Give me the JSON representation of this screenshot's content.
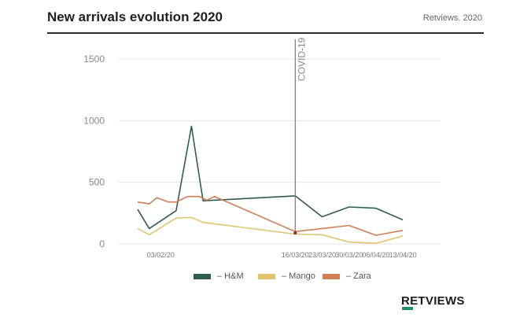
{
  "header": {
    "title": "New arrivals evolution 2020",
    "source": "Retviews. 2020"
  },
  "logo": {
    "text": "RETVIEWS"
  },
  "colors": {
    "hm": "#2e5e4e",
    "mango": "#e2c56f",
    "zara": "#d27d54",
    "covid": "#c0605a",
    "grid": "#e6e6e6"
  },
  "chart_data": {
    "type": "line",
    "title": "New arrivals evolution 2020",
    "xlabel": "",
    "ylabel": "",
    "ylim": [
      0,
      1500
    ],
    "yticks": [
      0,
      500,
      1000,
      1500
    ],
    "ytick_labels": [
      "0",
      "500",
      "1000",
      "1500"
    ],
    "xlim": [
      0,
      70
    ],
    "x_tick_positions": [
      6,
      41,
      48,
      55,
      62,
      69
    ],
    "x_tick_labels": [
      "03/02/20",
      "16/03/20",
      "23/03/20",
      "30/03/20",
      "06/04/20",
      "13/04/20"
    ],
    "annotation": {
      "label": "COVID-19",
      "x": 41
    },
    "series": [
      {
        "name": "H&M",
        "legend_label": "– H&M",
        "color_key": "hm",
        "x": [
          0,
          3,
          10,
          14,
          17,
          41,
          48,
          55,
          62,
          69
        ],
        "y": [
          280,
          125,
          270,
          955,
          350,
          390,
          220,
          300,
          290,
          195
        ]
      },
      {
        "name": "Mango",
        "legend_label": "– Mango",
        "color_key": "mango",
        "x": [
          0,
          3,
          10,
          14,
          17,
          41,
          48,
          55,
          62,
          69
        ],
        "y": [
          125,
          75,
          210,
          215,
          175,
          80,
          75,
          15,
          5,
          65
        ]
      },
      {
        "name": "Zara",
        "legend_label": "– Zara",
        "color_key": "zara",
        "x": [
          0,
          3,
          5,
          8,
          10,
          13,
          16,
          18,
          20,
          41,
          48,
          55,
          62,
          69
        ],
        "y": [
          340,
          325,
          375,
          340,
          340,
          385,
          385,
          355,
          385,
          100,
          125,
          150,
          70,
          110
        ]
      }
    ]
  }
}
